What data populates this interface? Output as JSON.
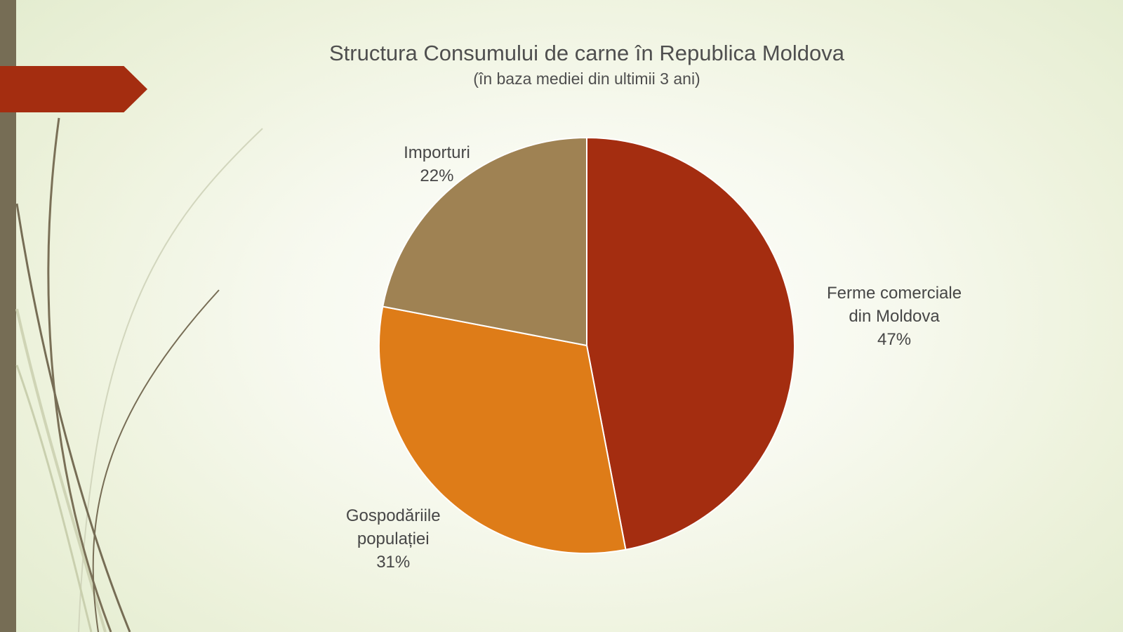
{
  "slide": {
    "accent_color": "#a42d10",
    "band_color": "#766d55"
  },
  "chart_data": {
    "type": "pie",
    "title": "Structura Consumului de carne în Republica Moldova",
    "subtitle": "(în baza mediei din ultimii 3 ani)",
    "start_angle_deg": 0,
    "direction": "clockwise",
    "slices": [
      {
        "label_lines": [
          "Ferme comerciale",
          "din Moldova"
        ],
        "percent_label": "47%",
        "value": 47,
        "color": "#a42d10"
      },
      {
        "label_lines": [
          "Gospodăriile",
          "populației"
        ],
        "percent_label": "31%",
        "value": 31,
        "color": "#de7c18"
      },
      {
        "label_lines": [
          "Importuri"
        ],
        "percent_label": "22%",
        "value": 22,
        "color": "#9f8253"
      }
    ]
  }
}
